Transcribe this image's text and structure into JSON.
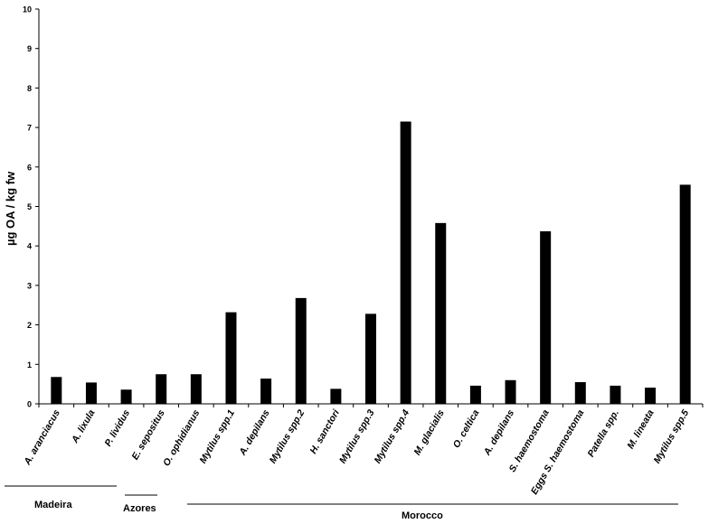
{
  "chart_data": {
    "type": "bar",
    "ylabel": "µg OA / kg fw",
    "ylim": [
      0,
      10
    ],
    "yticks": [
      "0",
      "1",
      "2",
      "3",
      "4",
      "5",
      "6",
      "7",
      "8",
      "9",
      "10"
    ],
    "categories": [
      "A. aranciacus",
      "A. lixula",
      "P. lividus",
      "E. sepositus",
      "O. ophidianus",
      "Mytilus spp.1",
      "A. depilans",
      "Mytilus spp.2",
      "H. sanctori",
      "Mytilus spp.3",
      "Mytilus spp.4",
      "M. glacialis",
      "O. celtica",
      "A. depilans",
      "S. haemostoma",
      "Eggs S. haemostoma",
      "Patella spp.",
      "M. lineata",
      "Mytilus spp.5"
    ],
    "values": [
      0.68,
      0.54,
      0.36,
      0.75,
      0.75,
      2.32,
      0.64,
      2.68,
      0.38,
      2.28,
      7.15,
      4.58,
      0.46,
      0.6,
      4.37,
      0.55,
      0.46,
      0.41,
      5.55
    ],
    "bar_color": "#000000",
    "groups": [
      {
        "label": "Madeira",
        "from": 0,
        "to": 3
      },
      {
        "label": "Azores",
        "from": 3,
        "to": 4
      },
      {
        "label": "Morocco",
        "from": 5,
        "to": 18
      }
    ]
  }
}
